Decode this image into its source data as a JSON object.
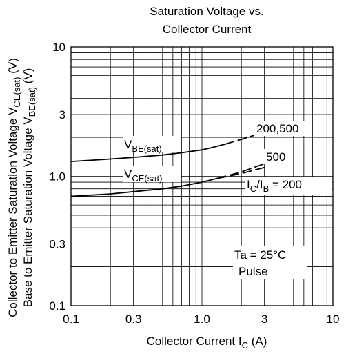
{
  "chart_data": {
    "type": "line",
    "title_lines": [
      "Saturation Voltage vs.",
      "Collector Current"
    ],
    "xaxis": {
      "label_main": "Collector Current  I",
      "label_sub": "C",
      "label_unit": "  (A)",
      "scale": "log",
      "lim": [
        0.1,
        10
      ],
      "ticks": [
        {
          "value": 0.1,
          "label": "0.1"
        },
        {
          "value": 0.3,
          "label": "0.3"
        },
        {
          "value": 1,
          "label": "1.0"
        },
        {
          "value": 3,
          "label": "3"
        },
        {
          "value": 10,
          "label": "10"
        }
      ]
    },
    "yaxis": {
      "label_line1": {
        "main": "Collector to Emitter Saturation Voltage  V",
        "sub": "CE(sat)",
        "unit": "  (V)"
      },
      "label_line2": {
        "main": "Base to Emitter Saturation Voltage  V",
        "sub": "BE(sat)",
        "unit": "  (V)"
      },
      "scale": "log",
      "lim": [
        0.1,
        10
      ],
      "ticks": [
        {
          "value": 0.1,
          "label": "0.1"
        },
        {
          "value": 0.3,
          "label": "0.3"
        },
        {
          "value": 1,
          "label": "1.0"
        },
        {
          "value": 3,
          "label": "3"
        },
        {
          "value": 10,
          "label": "10"
        }
      ]
    },
    "grid": true,
    "series": [
      {
        "name": "VBE(sat)",
        "style": "solid",
        "x": [
          0.1,
          0.2,
          0.3,
          0.5,
          0.7,
          1.0,
          1.2,
          1.5
        ],
        "y": [
          1.3,
          1.36,
          1.4,
          1.46,
          1.52,
          1.6,
          1.67,
          1.77
        ]
      },
      {
        "name": "VBE(sat)",
        "style": "dashed",
        "x": [
          1.5,
          2.0,
          3.0
        ],
        "y": [
          1.77,
          1.93,
          2.2
        ]
      },
      {
        "name": "VCE(sat)",
        "style": "solid",
        "x": [
          0.1,
          0.2,
          0.3,
          0.5,
          0.7,
          1.0,
          1.3
        ],
        "y": [
          0.7,
          0.73,
          0.76,
          0.8,
          0.84,
          0.9,
          0.96
        ]
      },
      {
        "name": "500",
        "style": "dashed",
        "x": [
          1.3,
          2.0,
          3.0
        ],
        "y": [
          0.96,
          1.08,
          1.25
        ]
      },
      {
        "name": "IC/IB = 200",
        "style": "dashed",
        "x": [
          1.3,
          2.0,
          3.0
        ],
        "y": [
          0.96,
          1.05,
          1.17
        ]
      }
    ],
    "annotations": {
      "vbe": {
        "main": "V",
        "sub": "BE(sat)"
      },
      "vce": {
        "main": "V",
        "sub": "CE(sat)"
      },
      "label_200_500": "200,500",
      "label_500": "500",
      "ratio": {
        "i1": "I",
        "sub1": "C",
        "slash": "/I",
        "sub2": "B",
        "rest": " = 200"
      },
      "conditions_line1": "Ta = 25°C",
      "conditions_line2": "Pulse"
    }
  }
}
